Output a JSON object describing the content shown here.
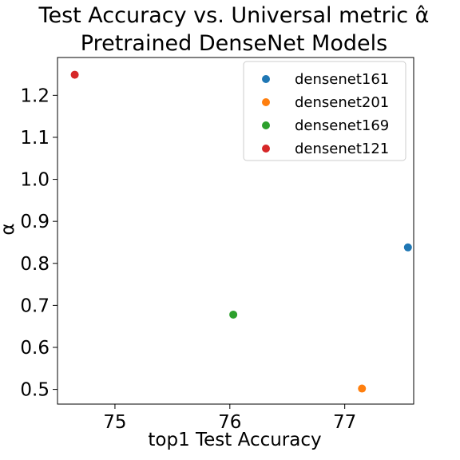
{
  "chart_data": {
    "type": "scatter",
    "title_line1": "Test Accuracy vs. Universal metric α̂",
    "title_line2": "Pretrained DenseNet Models",
    "xlabel": "top1 Test Accuracy",
    "ylabel": "α",
    "xlim": [
      74.5,
      77.6
    ],
    "ylim": [
      0.465,
      1.29
    ],
    "xticks": [
      75,
      76,
      77
    ],
    "xtick_labels": [
      "75",
      "76",
      "77"
    ],
    "yticks": [
      0.5,
      0.6,
      0.7,
      0.8,
      0.9,
      1.0,
      1.1,
      1.2
    ],
    "ytick_labels": [
      "0.5",
      "0.6",
      "0.7",
      "0.8",
      "0.9",
      "1.0",
      "1.1",
      "1.2"
    ],
    "grid": false,
    "legend_position": "top-right",
    "series": [
      {
        "name": "densenet161",
        "color": "#1f77b4",
        "x": [
          77.55
        ],
        "y": [
          0.838
        ]
      },
      {
        "name": "densenet201",
        "color": "#ff7f0e",
        "x": [
          77.15
        ],
        "y": [
          0.502
        ]
      },
      {
        "name": "densenet169",
        "color": "#2ca02c",
        "x": [
          76.03
        ],
        "y": [
          0.678
        ]
      },
      {
        "name": "densenet121",
        "color": "#d62728",
        "x": [
          74.65
        ],
        "y": [
          1.249
        ]
      }
    ]
  }
}
